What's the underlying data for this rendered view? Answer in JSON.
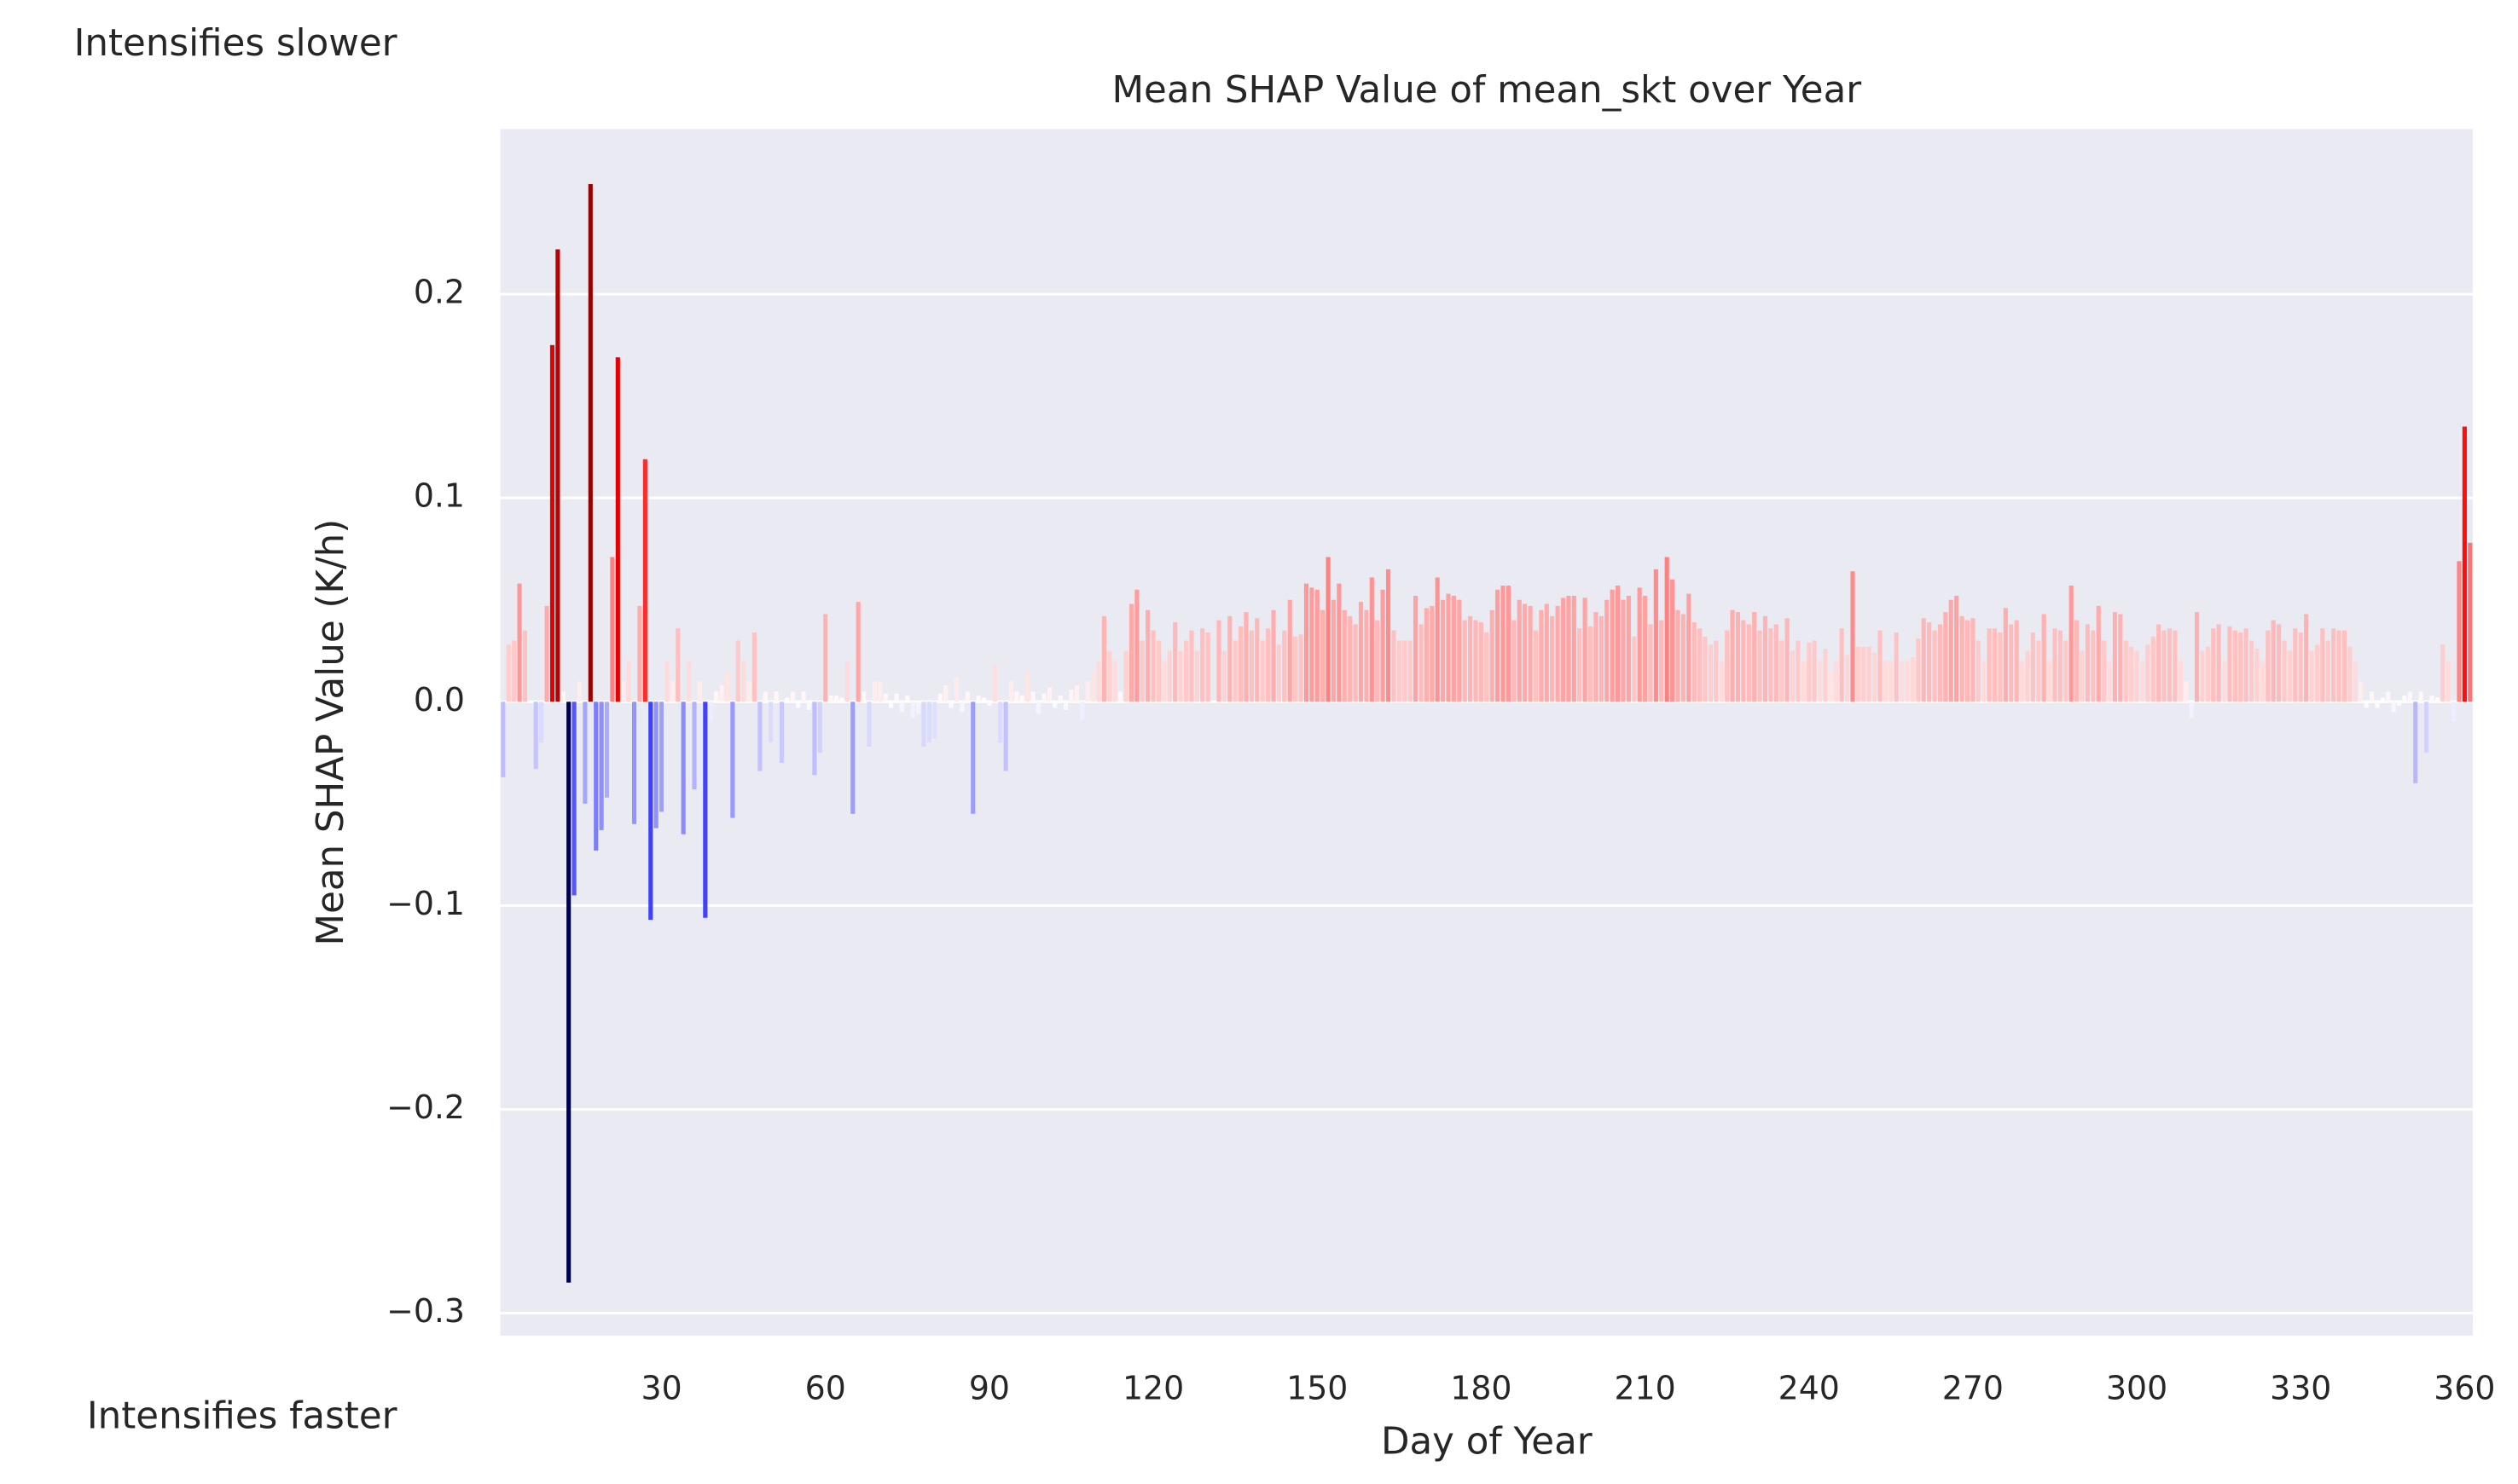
{
  "chart_data": {
    "type": "bar",
    "title": "Mean SHAP Value of mean_skt over Year",
    "x_label": "Day of Year",
    "y_label": "Mean SHAP Value (K/h)",
    "annotations": [
      "Intensifies slower",
      "Intensifies faster"
    ],
    "colormap": "seismic",
    "grid": "y",
    "xlim": [
      0.5,
      361.5
    ],
    "ylim": [
      -0.311,
      0.281
    ],
    "xticks": [
      30,
      60,
      90,
      120,
      150,
      180,
      210,
      240,
      270,
      300,
      330,
      360
    ],
    "yticks": [
      {
        "value": -0.3,
        "label": "−0.3"
      },
      {
        "value": -0.2,
        "label": "−0.2"
      },
      {
        "value": -0.1,
        "label": "−0.1"
      },
      {
        "value": 0,
        "label": "0.0"
      },
      0.1,
      0.2
    ],
    "values": [
      -0.037,
      0.028,
      0.03,
      0.058,
      0.035,
      0.0,
      -0.033,
      -0.02,
      0.047,
      0.175,
      0.222,
      0.005,
      -0.285,
      -0.095,
      0.01,
      -0.05,
      0.254,
      -0.073,
      -0.063,
      -0.047,
      0.071,
      0.169,
      0.01,
      0.02,
      -0.06,
      0.047,
      0.119,
      -0.107,
      -0.062,
      -0.054,
      0.02,
      0.01,
      0.036,
      -0.065,
      0.02,
      -0.043,
      0.01,
      -0.106,
      -0.01,
      0.005,
      0.008,
      0.015,
      -0.057,
      0.03,
      0.02,
      0.01,
      0.034,
      -0.034,
      0.005,
      -0.02,
      0.005,
      -0.03,
      0.002,
      0.005,
      -0.003,
      0.005,
      -0.004,
      -0.036,
      -0.025,
      0.043,
      0.003,
      0.003,
      0.002,
      0.02,
      -0.055,
      0.049,
      0.005,
      -0.022,
      0.01,
      0.01,
      0.004,
      -0.003,
      0.004,
      -0.005,
      0.003,
      -0.008,
      -0.006,
      -0.022,
      -0.02,
      -0.018,
      0.004,
      0.008,
      -0.003,
      0.012,
      -0.005,
      0.005,
      -0.055,
      0.003,
      0.002,
      -0.002,
      0.018,
      -0.02,
      -0.034,
      0.01,
      0.005,
      0.003,
      0.015,
      0.005,
      -0.006,
      0.004,
      0.007,
      -0.003,
      0.003,
      -0.004,
      0.006,
      0.008,
      -0.009,
      0.01,
      0.015,
      0.02,
      0.042,
      0.025,
      0.02,
      0.005,
      0.025,
      0.048,
      0.055,
      0.03,
      0.045,
      0.035,
      0.03,
      0.02,
      0.025,
      0.039,
      0.025,
      0.03,
      0.035,
      0.025,
      0.036,
      0.034,
      0.0,
      0.04,
      0.025,
      0.042,
      0.03,
      0.037,
      0.044,
      0.035,
      0.041,
      0.03,
      0.036,
      0.045,
      0.028,
      0.035,
      0.05,
      0.032,
      0.033,
      0.058,
      0.056,
      0.055,
      0.045,
      0.071,
      0.05,
      0.058,
      0.045,
      0.042,
      0.038,
      0.049,
      0.045,
      0.061,
      0.04,
      0.055,
      0.065,
      0.035,
      0.03,
      0.03,
      0.03,
      0.052,
      0.038,
      0.046,
      0.047,
      0.061,
      0.05,
      0.053,
      0.052,
      0.05,
      0.04,
      0.042,
      0.04,
      0.039,
      0.034,
      0.045,
      0.055,
      0.057,
      0.057,
      0.04,
      0.05,
      0.048,
      0.047,
      0.035,
      0.045,
      0.048,
      0.042,
      0.047,
      0.051,
      0.052,
      0.052,
      0.036,
      0.051,
      0.037,
      0.044,
      0.042,
      0.05,
      0.055,
      0.057,
      0.05,
      0.052,
      0.032,
      0.056,
      0.052,
      0.038,
      0.065,
      0.04,
      0.071,
      0.06,
      0.045,
      0.043,
      0.053,
      0.039,
      0.036,
      0.032,
      0.028,
      0.03,
      0.02,
      0.035,
      0.045,
      0.044,
      0.04,
      0.038,
      0.044,
      0.035,
      0.042,
      0.036,
      0.038,
      0.03,
      0.041,
      0.025,
      0.03,
      0.02,
      0.029,
      0.03,
      0.02,
      0.026,
      0.015,
      0.02,
      0.036,
      0.023,
      0.064,
      0.027,
      0.027,
      0.027,
      0.024,
      0.035,
      0.02,
      0.02,
      0.034,
      0.02,
      0.02,
      0.022,
      0.031,
      0.041,
      0.039,
      0.035,
      0.038,
      0.044,
      0.05,
      0.052,
      0.042,
      0.04,
      0.041,
      0.03,
      0.02,
      0.036,
      0.036,
      0.034,
      0.046,
      0.038,
      0.04,
      0.02,
      0.025,
      0.034,
      0.03,
      0.043,
      0.02,
      0.036,
      0.035,
      0.03,
      0.057,
      0.04,
      0.025,
      0.038,
      0.035,
      0.047,
      0.03,
      0.02,
      0.044,
      0.043,
      0.03,
      0.027,
      0.025,
      0.02,
      0.028,
      0.032,
      0.038,
      0.035,
      0.036,
      0.035,
      0.02,
      0.01,
      -0.008,
      0.044,
      0.025,
      0.027,
      0.036,
      0.038,
      0.02,
      0.037,
      0.035,
      0.034,
      0.036,
      0.03,
      0.026,
      0.02,
      0.035,
      0.04,
      0.038,
      0.03,
      0.025,
      0.036,
      0.034,
      0.043,
      0.025,
      0.028,
      0.036,
      0.03,
      0.036,
      0.035,
      0.035,
      0.027,
      0.02,
      0.01,
      -0.003,
      0.005,
      -0.003,
      0.002,
      0.005,
      -0.005,
      -0.002,
      0.003,
      0.005,
      -0.04,
      0.005,
      -0.025,
      0.003,
      0.002,
      0.028,
      0.02,
      -0.01,
      0.069,
      0.135,
      0.078
    ]
  }
}
